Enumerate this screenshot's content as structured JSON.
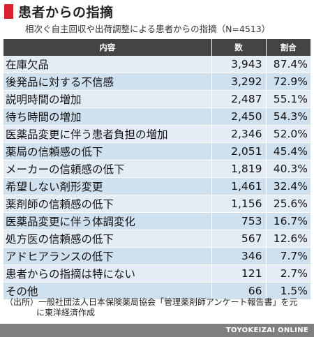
{
  "title": "患者からの指摘",
  "subtitle": "相次ぐ自主回収や出荷調整による患者からの指摘（N=4513）",
  "table": {
    "headers": [
      "内容",
      "数",
      "割合"
    ],
    "rows": [
      {
        "item": "在庫欠品",
        "count": "3,943",
        "share": "87.4%"
      },
      {
        "item": "後発品に対する不信感",
        "count": "3,292",
        "share": "72.9%"
      },
      {
        "item": "説明時間の増加",
        "count": "2,487",
        "share": "55.1%"
      },
      {
        "item": "待ち時間の増加",
        "count": "2,450",
        "share": "54.3%"
      },
      {
        "item": "医薬品変更に伴う患者負担の増加",
        "count": "2,346",
        "share": "52.0%"
      },
      {
        "item": "薬局の信頼感の低下",
        "count": "2,051",
        "share": "45.4%"
      },
      {
        "item": "メーカーの信頼感の低下",
        "count": "1,819",
        "share": "40.3%"
      },
      {
        "item": "希望しない剤形変更",
        "count": "1,461",
        "share": "32.4%"
      },
      {
        "item": "薬剤師の信頼感の低下",
        "count": "1,156",
        "share": "25.6%"
      },
      {
        "item": "医薬品変更に伴う体調変化",
        "count": "753",
        "share": "16.7%"
      },
      {
        "item": "処方医の信頼感の低下",
        "count": "567",
        "share": "12.6%"
      },
      {
        "item": "アドヒアランスの低下",
        "count": "346",
        "share": "7.7%"
      },
      {
        "item": "患者からの指摘は特にない",
        "count": "121",
        "share": "2.7%"
      },
      {
        "item": "その他",
        "count": "66",
        "share": "1.5%"
      }
    ]
  },
  "source_note": {
    "line1": "（出所）一般社団法人日本保険薬局協会「管理薬剤師アンケート報告書」を元",
    "line2": "に東洋経済作成"
  },
  "footer": "TOYOKEIZAI ONLINE",
  "colors": {
    "accent": "#d8212a",
    "header_bg": "#444444",
    "row_light": "#e4edf6",
    "row_dark": "#cfe0ef",
    "footer_bg": "#7f7f7f"
  }
}
